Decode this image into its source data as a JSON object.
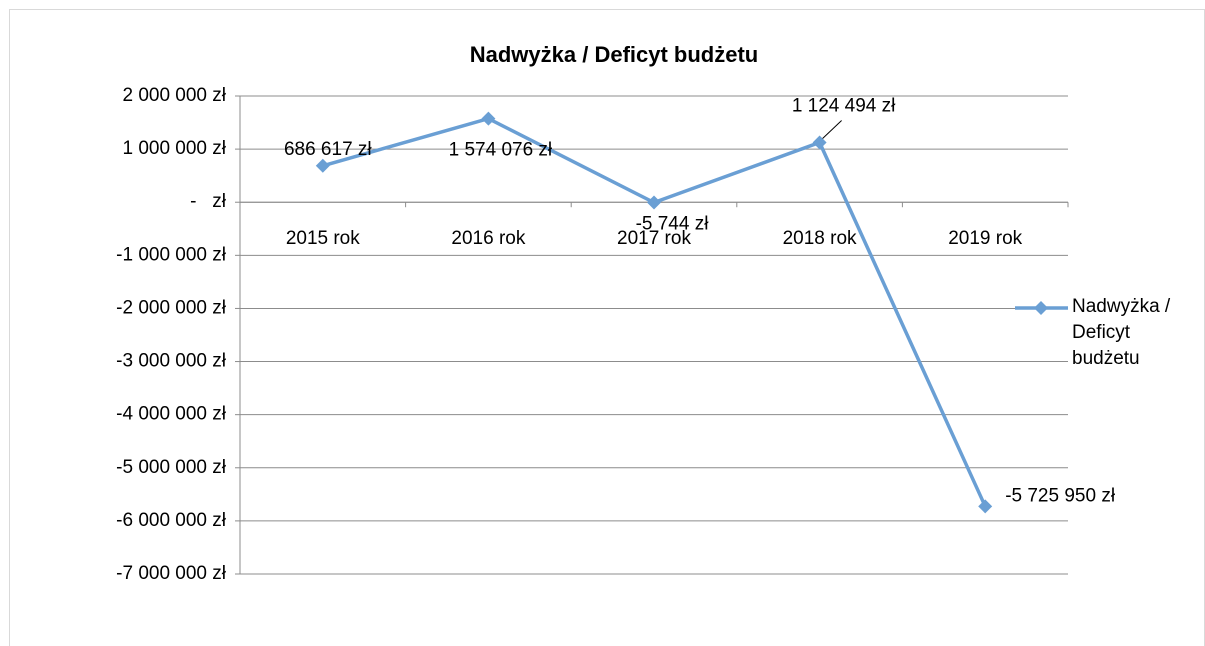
{
  "chart_data": {
    "type": "line",
    "title": "Nadwyżka / Deficyt budżetu",
    "categories": [
      "2015 rok",
      "2016 rok",
      "2017 rok",
      "2018 rok",
      "2019 rok"
    ],
    "series": [
      {
        "name": "Nadwyżka / Deficyt budżetu",
        "color": "#6a9fd4",
        "values": [
          686617,
          1574076,
          -5744,
          1124494,
          -5725950
        ],
        "value_labels": [
          "686 617 zł",
          "1 574 076 zł",
          "-5 744 zł",
          "1 124 494 zł",
          "-5 725 950 zł"
        ]
      }
    ],
    "ylim": [
      -7000000,
      2000000
    ],
    "yticks": [
      {
        "value": -7000000,
        "label": "-7 000 000 zł"
      },
      {
        "value": -6000000,
        "label": "-6 000 000 zł"
      },
      {
        "value": -5000000,
        "label": "-5 000 000 zł"
      },
      {
        "value": -4000000,
        "label": "-4 000 000 zł"
      },
      {
        "value": -3000000,
        "label": "-3 000 000 zł"
      },
      {
        "value": -2000000,
        "label": "-2 000 000 zł"
      },
      {
        "value": -1000000,
        "label": "-1 000 000 zł"
      },
      {
        "value": 0,
        "label": "-   zł"
      },
      {
        "value": 1000000,
        "label": "1 000 000 zł"
      },
      {
        "value": 2000000,
        "label": "2 000 000 zł"
      }
    ],
    "grid": true,
    "legend": "right"
  }
}
